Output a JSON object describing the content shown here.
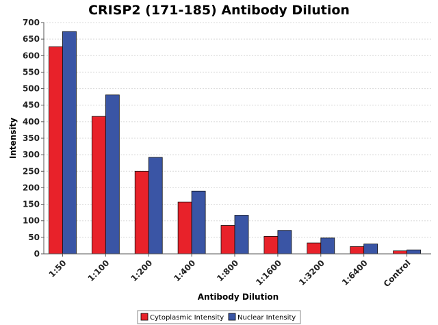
{
  "chart_data": {
    "type": "bar",
    "title": "CRISP2 (171-185) Antibody Dilution",
    "xlabel": "Antibody Dilution",
    "ylabel": "Intensity",
    "categories": [
      "1:50",
      "1:100",
      "1:200",
      "1:400",
      "1:800",
      "1:1600",
      "1:3200",
      "1:6400",
      "Control"
    ],
    "series": [
      {
        "name": "Cytoplasmic Intensity",
        "color": "#e8222a",
        "values": [
          627,
          416,
          250,
          157,
          86,
          53,
          33,
          22,
          9
        ]
      },
      {
        "name": "Nuclear Intensity",
        "color": "#3a55a5",
        "values": [
          673,
          481,
          292,
          190,
          117,
          71,
          48,
          30,
          12
        ]
      }
    ],
    "ylim": [
      0,
      700
    ],
    "yticks": [
      0,
      50,
      100,
      150,
      200,
      250,
      300,
      350,
      400,
      450,
      500,
      550,
      600,
      650,
      700
    ],
    "grid": true,
    "legend_position": "bottom"
  }
}
